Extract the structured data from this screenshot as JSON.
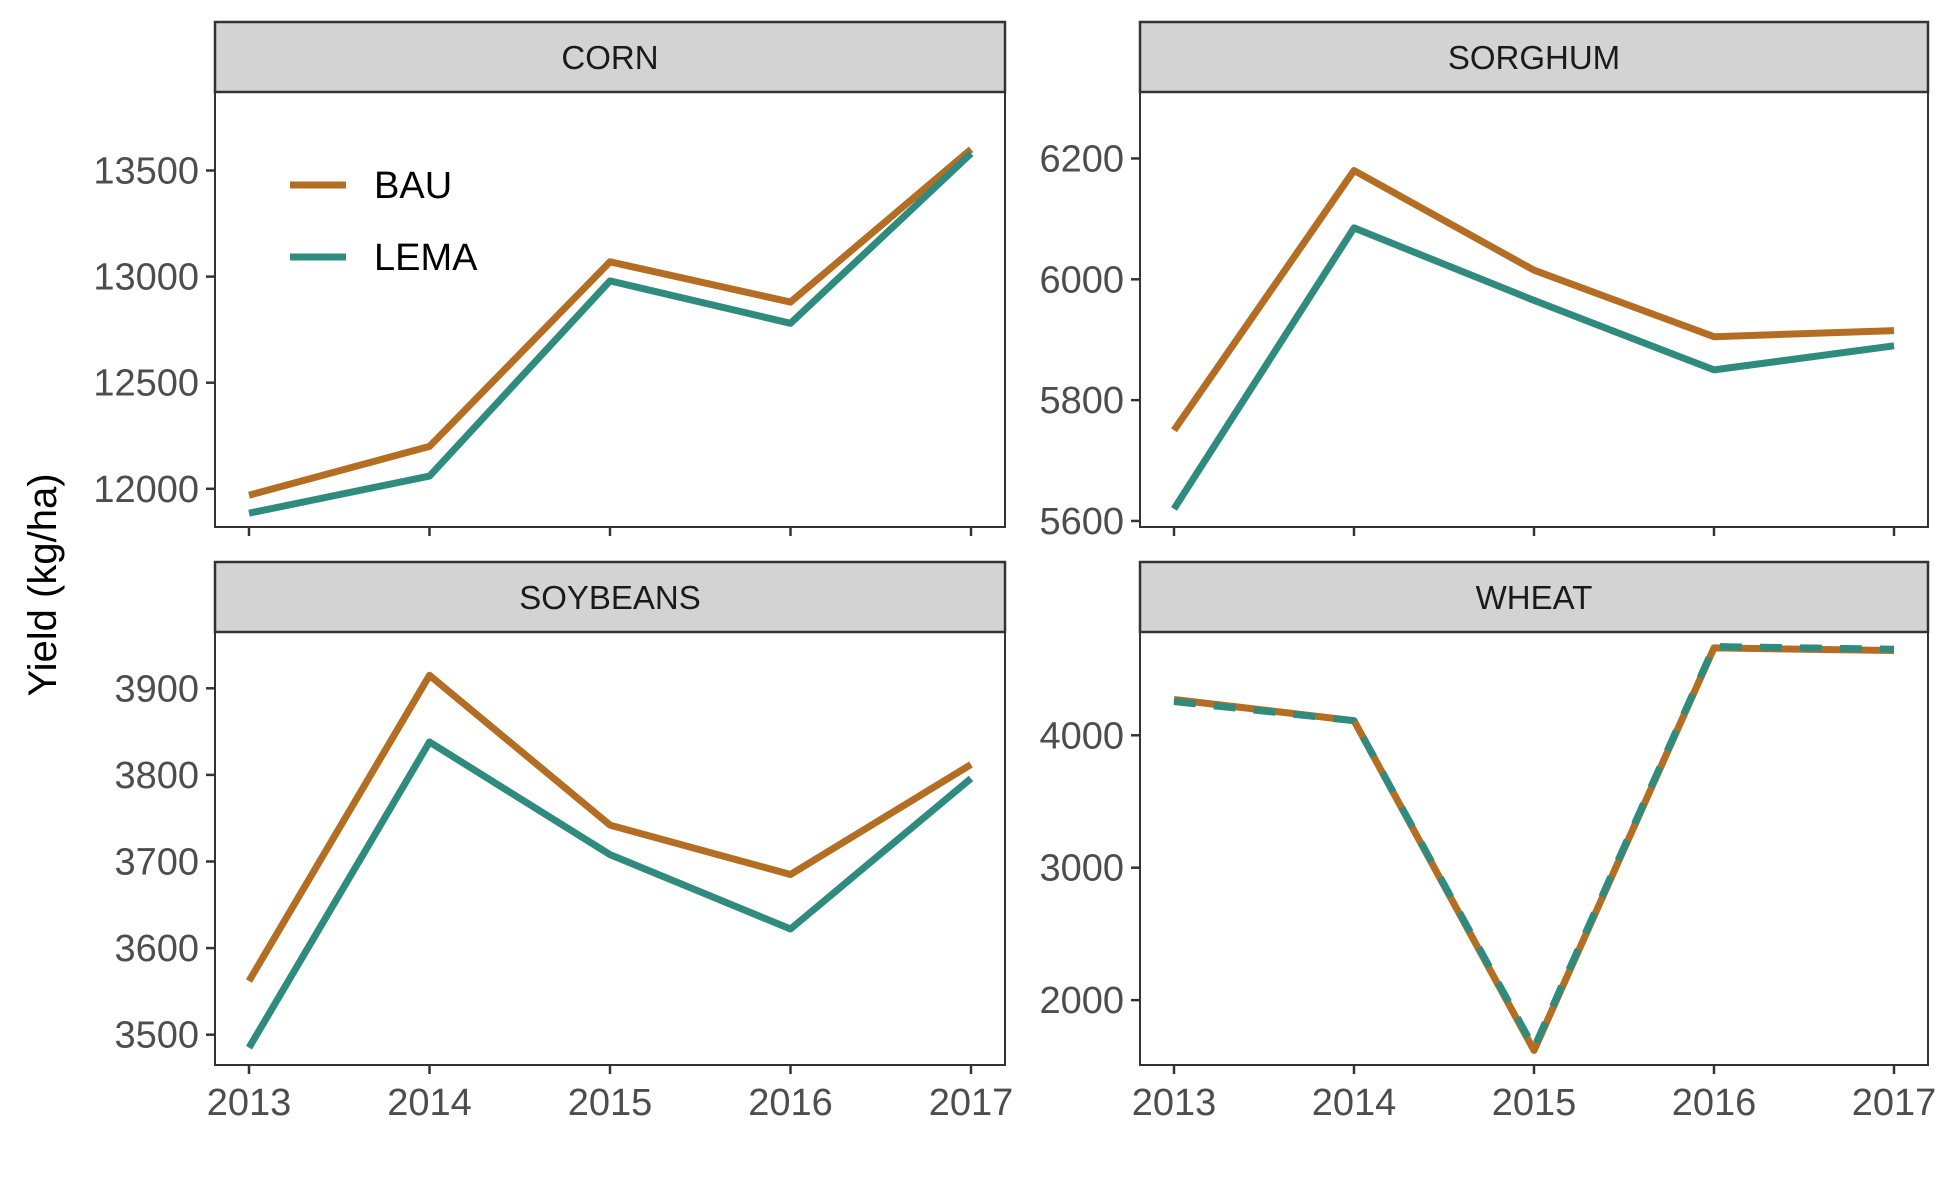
{
  "colors": {
    "BAU": "#b36e23",
    "LEMA": "#2e8b7e"
  },
  "legend": {
    "items": [
      "BAU",
      "LEMA"
    ],
    "placement": "top-left inside first panel"
  },
  "chart_data": [
    {
      "type": "line",
      "title": "CORN",
      "ylabel": "Yield (kg/ha)",
      "x": [
        2013,
        2014,
        2015,
        2016,
        2017
      ],
      "ylim": [
        11820,
        13870
      ],
      "yticks": [
        12000,
        12500,
        13000,
        13500
      ],
      "series": [
        {
          "name": "BAU",
          "values": [
            11970,
            12200,
            13070,
            12880,
            13600
          ],
          "dashed": false
        },
        {
          "name": "LEMA",
          "values": [
            11885,
            12060,
            12980,
            12780,
            13580
          ],
          "dashed": false
        }
      ]
    },
    {
      "type": "line",
      "title": "SORGHUM",
      "x": [
        2013,
        2014,
        2015,
        2016,
        2017
      ],
      "ylim": [
        5590,
        6310
      ],
      "yticks": [
        5600,
        5800,
        6000,
        6200
      ],
      "series": [
        {
          "name": "BAU",
          "values": [
            5750,
            6180,
            6015,
            5905,
            5915
          ],
          "dashed": false
        },
        {
          "name": "LEMA",
          "values": [
            5620,
            6085,
            5965,
            5850,
            5890
          ],
          "dashed": false
        }
      ]
    },
    {
      "type": "line",
      "title": "SOYBEANS",
      "x": [
        2013,
        2014,
        2015,
        2016,
        2017
      ],
      "ylim": [
        3465,
        3965
      ],
      "yticks": [
        3500,
        3600,
        3700,
        3800,
        3900
      ],
      "series": [
        {
          "name": "BAU",
          "values": [
            3562,
            3915,
            3742,
            3685,
            3812
          ],
          "dashed": false
        },
        {
          "name": "LEMA",
          "values": [
            3485,
            3838,
            3708,
            3622,
            3796
          ],
          "dashed": false
        }
      ]
    },
    {
      "type": "line",
      "title": "WHEAT",
      "x": [
        2013,
        2014,
        2015,
        2016,
        2017
      ],
      "ylim": [
        1510,
        4780
      ],
      "yticks": [
        2000,
        3000,
        4000
      ],
      "series": [
        {
          "name": "BAU",
          "values": [
            4270,
            4110,
            1620,
            4660,
            4640
          ],
          "dashed": false
        },
        {
          "name": "LEMA",
          "values": [
            4255,
            4110,
            1640,
            4670,
            4650
          ],
          "dashed": true
        }
      ]
    }
  ]
}
